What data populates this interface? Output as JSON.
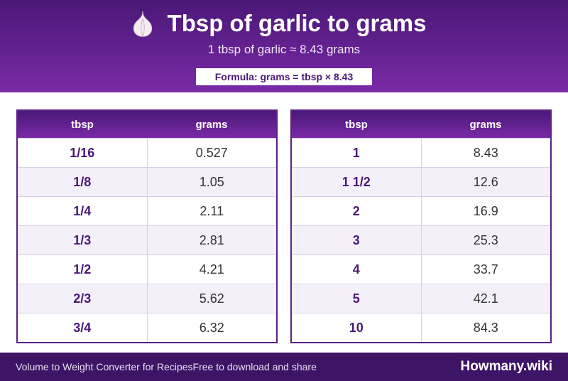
{
  "header": {
    "title": "Tbsp of garlic to grams",
    "subtitle": "1 tbsp of garlic ≈ 8.43 grams",
    "formula": "Formula: grams = tbsp × 8.43"
  },
  "tables": [
    {
      "columns": [
        "tbsp",
        "grams"
      ],
      "rows": [
        [
          "1/16",
          "0.527"
        ],
        [
          "1/8",
          "1.05"
        ],
        [
          "1/4",
          "2.11"
        ],
        [
          "1/3",
          "2.81"
        ],
        [
          "1/2",
          "4.21"
        ],
        [
          "2/3",
          "5.62"
        ],
        [
          "3/4",
          "6.32"
        ]
      ]
    },
    {
      "columns": [
        "tbsp",
        "grams"
      ],
      "rows": [
        [
          "1",
          "8.43"
        ],
        [
          "1 1/2",
          "12.6"
        ],
        [
          "2",
          "16.9"
        ],
        [
          "3",
          "25.3"
        ],
        [
          "4",
          "33.7"
        ],
        [
          "5",
          "42.1"
        ],
        [
          "10",
          "84.3"
        ]
      ]
    }
  ],
  "footer": {
    "left": "Volume to Weight Converter for Recipes",
    "middle": "Free to download and share",
    "brand": "Howmany.wiki"
  }
}
